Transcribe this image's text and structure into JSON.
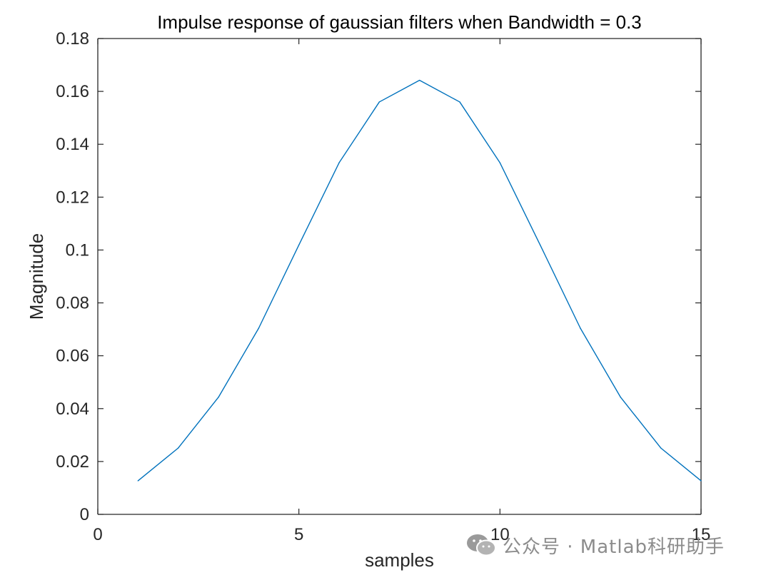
{
  "chart_data": {
    "type": "line",
    "title": "Impulse response of gaussian filters when Bandwidth = 0.3",
    "xlabel": "samples",
    "ylabel": "Magnitude",
    "xlim": [
      0,
      15
    ],
    "ylim": [
      0,
      0.18
    ],
    "xticks": [
      0,
      5,
      10,
      15
    ],
    "yticks": [
      0,
      0.02,
      0.04,
      0.06,
      0.08,
      0.1,
      0.12,
      0.14,
      0.16,
      0.18
    ],
    "xtick_labels": [
      "0",
      "5",
      "10",
      "15"
    ],
    "ytick_labels": [
      "0",
      "0.02",
      "0.04",
      "0.06",
      "0.08",
      "0.1",
      "0.12",
      "0.14",
      "0.16",
      "0.18"
    ],
    "grid": false,
    "series": [
      {
        "color": "#0072BD",
        "x": [
          1,
          2,
          3,
          4,
          5,
          6,
          7,
          8,
          9,
          10,
          11,
          12,
          13,
          14,
          15
        ],
        "y": [
          0.0127,
          0.0251,
          0.0443,
          0.0704,
          0.1019,
          0.133,
          0.156,
          0.1642,
          0.156,
          0.133,
          0.1019,
          0.0704,
          0.0443,
          0.0251,
          0.0127
        ]
      }
    ]
  },
  "watermark": {
    "icon": "wechat-icon",
    "text": "公众号 · Matlab科研助手"
  },
  "colors": {
    "axes": "#262626",
    "line": "#0072BD",
    "watermark": "#8c8c8c"
  }
}
